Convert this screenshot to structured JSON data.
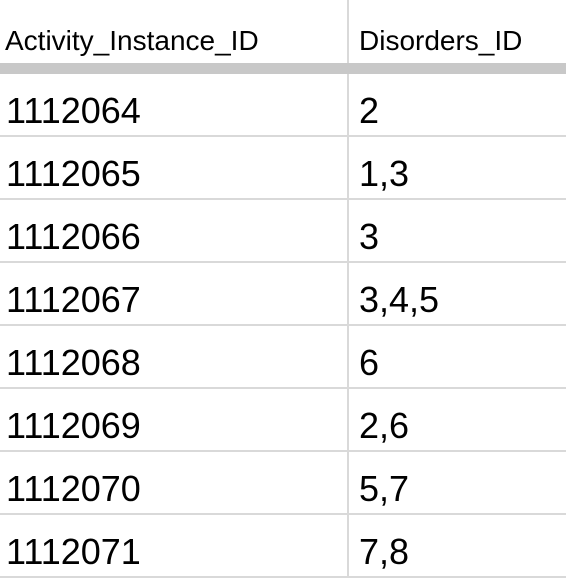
{
  "table": {
    "columns": [
      "Activity_Instance_ID",
      "Disorders_ID"
    ],
    "rows": [
      [
        "1112064",
        "2"
      ],
      [
        "1112065",
        "1,3"
      ],
      [
        "1112066",
        "3"
      ],
      [
        "1112067",
        "3,4,5"
      ],
      [
        "1112068",
        "6"
      ],
      [
        "1112069",
        "2,6"
      ],
      [
        "1112070",
        "5,7"
      ],
      [
        "1112071",
        "7,8"
      ]
    ]
  },
  "colors": {
    "grid_line": "#d9d9d9",
    "header_separator": "#c8c8c8",
    "text": "#000000",
    "background": "#ffffff"
  }
}
